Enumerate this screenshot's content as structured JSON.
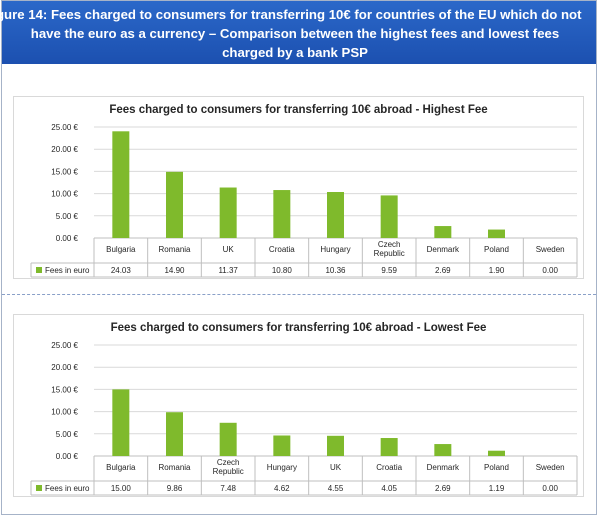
{
  "figure_title": {
    "line1": "gure 14: Fees charged to consumers for transferring 10€ for countries of the EU which do not",
    "line2": "have the euro as a currency – Comparison between the highest fees and lowest fees",
    "line3": "charged by a bank PSP"
  },
  "colors": {
    "bar": "#7fba2c",
    "header": "#1f56b8",
    "grid": "#d9d9d9"
  },
  "chart_data": [
    {
      "type": "bar",
      "title": "Fees charged to consumers for transferring 10€ abroad - Highest Fee",
      "categories": [
        [
          "Bulgaria"
        ],
        [
          "Romania"
        ],
        [
          "UK"
        ],
        [
          "Croatia"
        ],
        [
          "Hungary"
        ],
        [
          "Czech",
          "Republic"
        ],
        [
          "Denmark"
        ],
        [
          "Poland"
        ],
        [
          "Sweden"
        ]
      ],
      "series": [
        {
          "name": "Fees in euro",
          "values": [
            24.03,
            14.9,
            11.37,
            10.8,
            10.36,
            9.59,
            2.69,
            1.9,
            0.0
          ],
          "value_labels": [
            "24.03",
            "14.90",
            "11.37",
            "10.80",
            "10.36",
            "9.59",
            "2.69",
            "1.90",
            "0.00"
          ]
        }
      ],
      "y_ticks": [
        "0.00 €",
        "5.00 €",
        "10.00 €",
        "15.00 €",
        "20.00 €",
        "25.00 €"
      ],
      "ylim": [
        0,
        25
      ],
      "grid": true,
      "legend": "data-table"
    },
    {
      "type": "bar",
      "title": "Fees charged to consumers for transferring 10€ abroad - Lowest Fee",
      "categories": [
        [
          "Bulgaria"
        ],
        [
          "Romania"
        ],
        [
          "Czech",
          "Republic"
        ],
        [
          "Hungary"
        ],
        [
          "UK"
        ],
        [
          "Croatia"
        ],
        [
          "Denmark"
        ],
        [
          "Poland"
        ],
        [
          "Sweden"
        ]
      ],
      "series": [
        {
          "name": "Fees in euro",
          "values": [
            15.0,
            9.86,
            7.48,
            4.62,
            4.55,
            4.05,
            2.69,
            1.19,
            0.0
          ],
          "value_labels": [
            "15.00",
            "9.86",
            "7.48",
            "4.62",
            "4.55",
            "4.05",
            "2.69",
            "1.19",
            "0.00"
          ]
        }
      ],
      "y_ticks": [
        "0.00 €",
        "5.00 €",
        "10.00 €",
        "15.00 €",
        "20.00 €",
        "25.00 €"
      ],
      "ylim": [
        0,
        25
      ],
      "grid": true,
      "legend": "data-table"
    }
  ]
}
